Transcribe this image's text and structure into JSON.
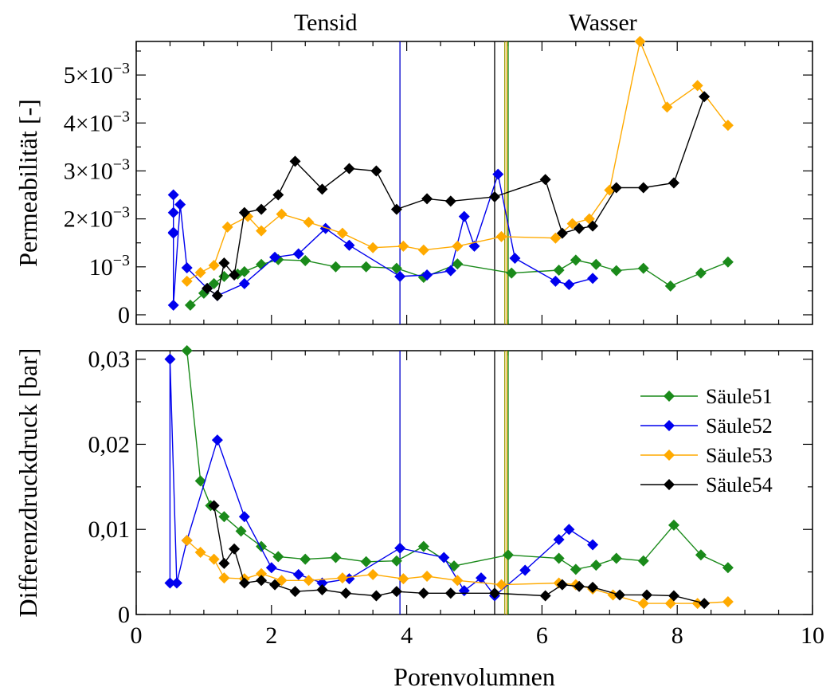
{
  "chart_data": [
    {
      "type": "line",
      "ylabel": "Permeabilität [-]",
      "xlim": [
        0,
        10
      ],
      "ylim": [
        -0.0002,
        0.0057
      ],
      "x_ticks": [
        0,
        2,
        4,
        6,
        8,
        10
      ],
      "y_ticks": [
        {
          "value": 0,
          "label": "0"
        },
        {
          "value": 0.001,
          "label": "10",
          "exp": "−3"
        },
        {
          "value": 0.002,
          "label": "2×10",
          "exp": "−3"
        },
        {
          "value": 0.003,
          "label": "3×10",
          "exp": "−3"
        },
        {
          "value": 0.004,
          "label": "4×10",
          "exp": "−3"
        },
        {
          "value": 0.005,
          "label": "5×10",
          "exp": "−3"
        }
      ],
      "region_labels": [
        {
          "text": "Tensid",
          "x": 2.8
        },
        {
          "text": "Wasser",
          "x": 6.9
        }
      ],
      "vlines": [
        {
          "x": 3.9,
          "color": "#0000cc"
        },
        {
          "x": 5.3,
          "color": "#000000"
        },
        {
          "x": 5.45,
          "color": "#999900"
        },
        {
          "x": 5.48,
          "color": "#ffaa00"
        },
        {
          "x": 5.5,
          "color": "#008000"
        }
      ],
      "series": [
        {
          "name": "Säule51",
          "color": "#1a8a1a",
          "points": [
            [
              0.8,
              0.0002
            ],
            [
              1.0,
              0.00045
            ],
            [
              1.15,
              0.00065
            ],
            [
              1.3,
              0.0008
            ],
            [
              1.5,
              0.00085
            ],
            [
              1.6,
              0.0009
            ],
            [
              1.85,
              0.00105
            ],
            [
              2.1,
              0.00115
            ],
            [
              2.5,
              0.00113
            ],
            [
              2.95,
              0.001
            ],
            [
              3.4,
              0.001
            ],
            [
              3.85,
              0.00097
            ],
            [
              4.25,
              0.00078
            ],
            [
              4.75,
              0.00106
            ],
            [
              5.55,
              0.00087
            ],
            [
              6.25,
              0.00093
            ],
            [
              6.5,
              0.00114
            ],
            [
              6.8,
              0.00105
            ],
            [
              7.1,
              0.00092
            ],
            [
              7.5,
              0.00097
            ],
            [
              7.9,
              0.0006
            ],
            [
              8.35,
              0.00087
            ],
            [
              8.75,
              0.0011
            ]
          ]
        },
        {
          "name": "Säule52",
          "color": "#0000ee",
          "points": [
            [
              0.55,
              0.0025
            ],
            [
              0.55,
              0.00213
            ],
            [
              0.55,
              0.0017
            ],
            [
              0.55,
              0.00172
            ],
            [
              0.55,
              0.0002
            ],
            [
              0.65,
              0.0023
            ],
            [
              0.75,
              0.00098
            ],
            [
              1.05,
              0.00055
            ],
            [
              1.2,
              0.0004
            ],
            [
              1.6,
              0.00065
            ],
            [
              2.05,
              0.0012
            ],
            [
              2.4,
              0.00127
            ],
            [
              2.8,
              0.0018
            ],
            [
              3.15,
              0.00145
            ],
            [
              3.9,
              0.0008
            ],
            [
              4.3,
              0.00083
            ],
            [
              4.65,
              0.00092
            ],
            [
              4.85,
              0.00205
            ],
            [
              5.0,
              0.00143
            ],
            [
              5.35,
              0.00293
            ],
            [
              5.6,
              0.00118
            ],
            [
              6.2,
              0.0007
            ],
            [
              6.4,
              0.00063
            ],
            [
              6.75,
              0.00076
            ]
          ]
        },
        {
          "name": "Säule53",
          "color": "#ffaa00",
          "points": [
            [
              0.75,
              0.0007
            ],
            [
              0.95,
              0.00088
            ],
            [
              1.15,
              0.00103
            ],
            [
              1.35,
              0.00183
            ],
            [
              1.65,
              0.00205
            ],
            [
              1.85,
              0.00175
            ],
            [
              2.15,
              0.0021
            ],
            [
              2.55,
              0.00193
            ],
            [
              3.05,
              0.0017
            ],
            [
              3.5,
              0.0014
            ],
            [
              3.95,
              0.00143
            ],
            [
              4.25,
              0.00135
            ],
            [
              4.75,
              0.00143
            ],
            [
              5.4,
              0.00163
            ],
            [
              6.2,
              0.0016
            ],
            [
              6.45,
              0.0019
            ],
            [
              6.7,
              0.002
            ],
            [
              7.0,
              0.0026
            ],
            [
              7.45,
              0.0057
            ],
            [
              7.85,
              0.00433
            ],
            [
              8.3,
              0.00478
            ],
            [
              8.75,
              0.00395
            ]
          ]
        },
        {
          "name": "Säule54",
          "color": "#000000",
          "points": [
            [
              1.05,
              0.00055
            ],
            [
              1.2,
              0.0004
            ],
            [
              1.3,
              0.00108
            ],
            [
              1.45,
              0.00083
            ],
            [
              1.6,
              0.00213
            ],
            [
              1.85,
              0.0022
            ],
            [
              2.1,
              0.0025
            ],
            [
              2.35,
              0.0032
            ],
            [
              2.75,
              0.00262
            ],
            [
              3.15,
              0.00305
            ],
            [
              3.55,
              0.003
            ],
            [
              3.85,
              0.0022
            ],
            [
              4.3,
              0.00242
            ],
            [
              4.65,
              0.00237
            ],
            [
              5.3,
              0.00246
            ],
            [
              6.05,
              0.00282
            ],
            [
              6.3,
              0.0017
            ],
            [
              6.55,
              0.0018
            ],
            [
              6.75,
              0.00185
            ],
            [
              7.1,
              0.00265
            ],
            [
              7.5,
              0.00265
            ],
            [
              7.95,
              0.00275
            ],
            [
              8.4,
              0.00455
            ]
          ]
        }
      ]
    },
    {
      "type": "line",
      "xlabel": "Porenvolumnen",
      "ylabel": "Differenzdruckdruck [bar]",
      "xlim": [
        0,
        10
      ],
      "ylim": [
        0,
        0.031
      ],
      "x_ticks": [
        0,
        2,
        4,
        6,
        8,
        10
      ],
      "y_ticks": [
        {
          "value": 0,
          "label": "0"
        },
        {
          "value": 0.01,
          "label": "0,01"
        },
        {
          "value": 0.02,
          "label": "0,02"
        },
        {
          "value": 0.03,
          "label": "0,03"
        }
      ],
      "legend": {
        "position": "right",
        "entries": [
          "Säule51",
          "Säule52",
          "Säule53",
          "Säule54"
        ]
      },
      "vlines": [
        {
          "x": 3.9,
          "color": "#0000cc"
        },
        {
          "x": 5.3,
          "color": "#000000"
        },
        {
          "x": 5.45,
          "color": "#999900"
        },
        {
          "x": 5.48,
          "color": "#ffaa00"
        },
        {
          "x": 5.5,
          "color": "#008000"
        }
      ],
      "series": [
        {
          "name": "Säule51",
          "color": "#1a8a1a",
          "points": [
            [
              0.75,
              0.031
            ],
            [
              0.95,
              0.0157
            ],
            [
              1.1,
              0.0128
            ],
            [
              1.3,
              0.0115
            ],
            [
              1.55,
              0.0098
            ],
            [
              1.85,
              0.008
            ],
            [
              2.1,
              0.0068
            ],
            [
              2.5,
              0.0065
            ],
            [
              2.95,
              0.0067
            ],
            [
              3.4,
              0.0062
            ],
            [
              3.85,
              0.0063
            ],
            [
              4.25,
              0.008
            ],
            [
              4.7,
              0.0057
            ],
            [
              5.5,
              0.007
            ],
            [
              6.25,
              0.0066
            ],
            [
              6.5,
              0.0053
            ],
            [
              6.8,
              0.0058
            ],
            [
              7.1,
              0.0066
            ],
            [
              7.5,
              0.0063
            ],
            [
              7.95,
              0.0105
            ],
            [
              8.35,
              0.007
            ],
            [
              8.75,
              0.0055
            ]
          ]
        },
        {
          "name": "Säule52",
          "color": "#0000ee",
          "points": [
            [
              0.5,
              0.0037
            ],
            [
              0.5,
              0.03
            ],
            [
              0.6,
              0.0037
            ],
            [
              0.75,
              0.0087
            ],
            [
              1.2,
              0.0205
            ],
            [
              1.6,
              0.0115
            ],
            [
              2.0,
              0.0055
            ],
            [
              2.4,
              0.0047
            ],
            [
              2.75,
              0.0037
            ],
            [
              3.15,
              0.0042
            ],
            [
              3.9,
              0.0078
            ],
            [
              4.55,
              0.0067
            ],
            [
              4.85,
              0.0028
            ],
            [
              5.1,
              0.0043
            ],
            [
              5.3,
              0.0022
            ],
            [
              5.75,
              0.0052
            ],
            [
              6.25,
              0.0088
            ],
            [
              6.4,
              0.01
            ],
            [
              6.75,
              0.0082
            ]
          ]
        },
        {
          "name": "Säule53",
          "color": "#ffaa00",
          "points": [
            [
              0.75,
              0.0087
            ],
            [
              0.95,
              0.0073
            ],
            [
              1.15,
              0.0065
            ],
            [
              1.3,
              0.0043
            ],
            [
              1.6,
              0.0042
            ],
            [
              1.85,
              0.0048
            ],
            [
              2.15,
              0.004
            ],
            [
              2.55,
              0.004
            ],
            [
              3.05,
              0.0043
            ],
            [
              3.5,
              0.0047
            ],
            [
              3.95,
              0.0042
            ],
            [
              4.3,
              0.0045
            ],
            [
              4.75,
              0.004
            ],
            [
              5.4,
              0.0035
            ],
            [
              6.25,
              0.0037
            ],
            [
              6.5,
              0.0035
            ],
            [
              6.75,
              0.003
            ],
            [
              7.05,
              0.0023
            ],
            [
              7.5,
              0.0013
            ],
            [
              7.9,
              0.0013
            ],
            [
              8.3,
              0.0013
            ],
            [
              8.75,
              0.0015
            ]
          ]
        },
        {
          "name": "Säule54",
          "color": "#000000",
          "points": [
            [
              1.15,
              0.0128
            ],
            [
              1.3,
              0.006
            ],
            [
              1.45,
              0.0077
            ],
            [
              1.6,
              0.0037
            ],
            [
              1.85,
              0.004
            ],
            [
              2.05,
              0.0035
            ],
            [
              2.35,
              0.0027
            ],
            [
              2.75,
              0.0029
            ],
            [
              3.1,
              0.0025
            ],
            [
              3.55,
              0.0022
            ],
            [
              3.85,
              0.0027
            ],
            [
              4.25,
              0.0025
            ],
            [
              4.65,
              0.0025
            ],
            [
              5.3,
              0.0025
            ],
            [
              6.05,
              0.0022
            ],
            [
              6.3,
              0.0035
            ],
            [
              6.55,
              0.0033
            ],
            [
              6.75,
              0.0032
            ],
            [
              7.15,
              0.0023
            ],
            [
              7.55,
              0.0023
            ],
            [
              7.95,
              0.0022
            ],
            [
              8.4,
              0.0013
            ]
          ]
        }
      ]
    }
  ]
}
